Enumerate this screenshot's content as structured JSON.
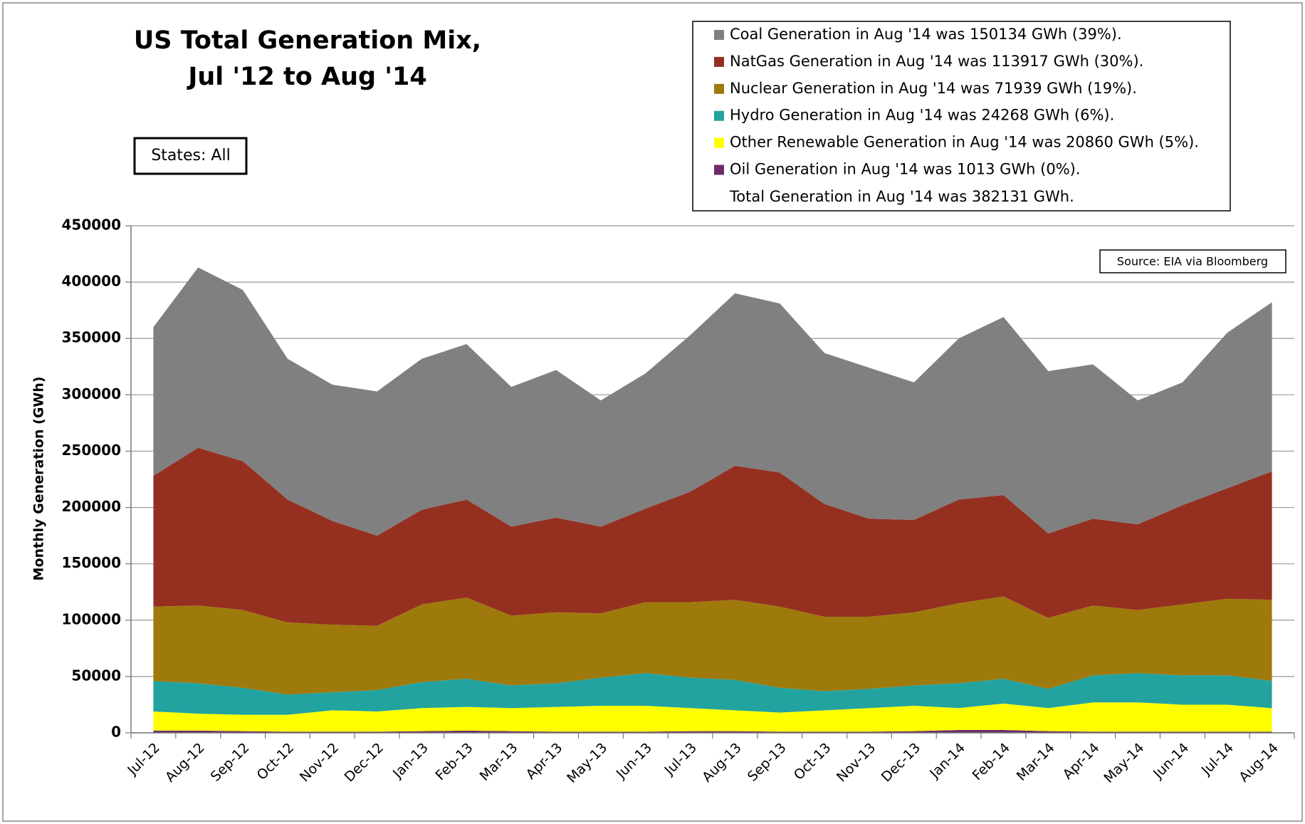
{
  "chart_data": {
    "type": "stacked_area",
    "title": [
      "US Total Generation Mix,",
      "Jul '12 to Aug '14"
    ],
    "states_label": "States: All",
    "source": "Source: EIA via Bloomberg",
    "ylabel": "Monthly Generation (GWh)",
    "total_note": "Total Generation in Aug '14 was 382131 GWh.",
    "categories": [
      "Jul-12",
      "Aug-12",
      "Sep-12",
      "Oct-12",
      "Nov-12",
      "Dec-12",
      "Jan-13",
      "Feb-13",
      "Mar-13",
      "Apr-13",
      "May-13",
      "Jun-13",
      "Jul-13",
      "Aug-13",
      "Sep-13",
      "Oct-13",
      "Nov-13",
      "Dec-13",
      "Jan-14",
      "Feb-14",
      "Mar-14",
      "Apr-14",
      "May-14",
      "Jun-14",
      "Jul-14",
      "Aug-14"
    ],
    "series": [
      {
        "name": "Coal Generation in Aug '14 was 150134 GWh (39%).",
        "color": "#808080",
        "values": [
          132000,
          160000,
          152000,
          125000,
          121000,
          128000,
          134000,
          138000,
          124000,
          131000,
          112000,
          120000,
          139000,
          153000,
          150000,
          134000,
          134000,
          122000,
          143000,
          158000,
          144000,
          137000,
          110000,
          109000,
          138000,
          150134
        ]
      },
      {
        "name": "NatGas Generation in Aug '14 was 113917 GWh (30%).",
        "color": "#953020",
        "values": [
          116000,
          140000,
          132000,
          109000,
          92000,
          80000,
          84000,
          87000,
          79000,
          84000,
          77000,
          83000,
          98000,
          119000,
          119000,
          100000,
          87000,
          82000,
          92000,
          90000,
          75000,
          77000,
          76000,
          88000,
          98000,
          113917
        ]
      },
      {
        "name": "Nuclear Generation in Aug '14 was 71939 GWh (19%).",
        "color": "#9e7a0c",
        "values": [
          66000,
          69000,
          69000,
          64000,
          60000,
          57000,
          69000,
          72000,
          62000,
          63000,
          57000,
          63000,
          67000,
          71000,
          72000,
          66000,
          64000,
          65000,
          71000,
          73000,
          63000,
          62000,
          56000,
          63000,
          68000,
          71939
        ]
      },
      {
        "name": "Hydro Generation in Aug '14 was 24268 GWh (6%).",
        "color": "#22a3a0",
        "values": [
          27000,
          27000,
          24000,
          18000,
          16000,
          19000,
          23000,
          25000,
          20000,
          21000,
          25000,
          29000,
          27000,
          27000,
          22000,
          17000,
          17000,
          18000,
          22000,
          22000,
          17000,
          24000,
          26000,
          26000,
          26000,
          24268
        ]
      },
      {
        "name": "Other Renewable Generation in Aug '14 was 20860 GWh (5%).",
        "color": "#ffff00",
        "values": [
          17000,
          15000,
          14500,
          15000,
          19000,
          18000,
          20500,
          21000,
          20500,
          22000,
          23000,
          23000,
          20500,
          18500,
          17000,
          19000,
          21000,
          22500,
          19500,
          23500,
          20500,
          26000,
          26000,
          24000,
          24000,
          20860
        ]
      },
      {
        "name": "Oil Generation in Aug '14 was 1013 GWh (0%).",
        "color": "#6b2c6b",
        "values": [
          2000,
          2000,
          1500,
          1000,
          1000,
          1000,
          1500,
          2000,
          1500,
          1000,
          1000,
          1000,
          1500,
          1500,
          1000,
          1000,
          1000,
          1500,
          2500,
          2500,
          1500,
          1000,
          1000,
          1000,
          1000,
          1013
        ]
      }
    ],
    "ylim": [
      0,
      450000
    ],
    "yticks": [
      0,
      50000,
      100000,
      150000,
      200000,
      250000,
      300000,
      350000,
      400000,
      450000
    ]
  }
}
